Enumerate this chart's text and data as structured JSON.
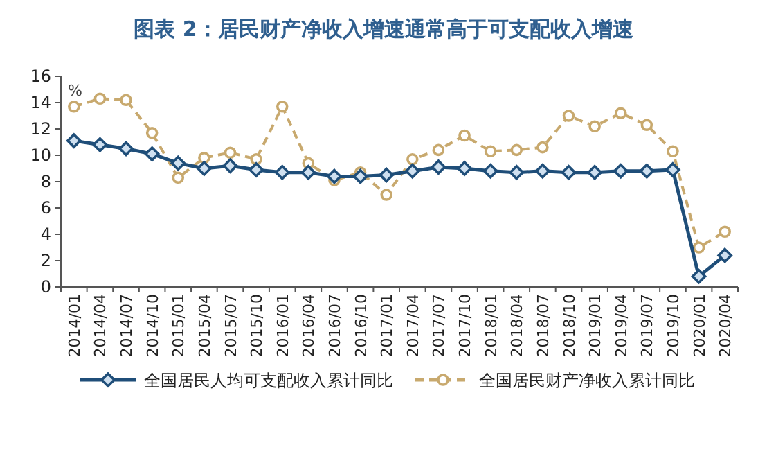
{
  "chart_data": {
    "type": "line",
    "title": "图表 2：居民财产净收入增速通常高于可支配收入增速",
    "categories": [
      "2014/01",
      "2014/04",
      "2014/07",
      "2014/10",
      "2015/01",
      "2015/04",
      "2015/07",
      "2015/10",
      "2016/01",
      "2016/04",
      "2016/07",
      "2016/10",
      "2017/01",
      "2017/04",
      "2017/07",
      "2017/10",
      "2018/01",
      "2018/04",
      "2018/07",
      "2018/10",
      "2019/01",
      "2019/04",
      "2019/07",
      "2019/10",
      "2020/01",
      "2020/04"
    ],
    "series": [
      {
        "name": "全国居民人均可支配收入累计同比",
        "color": "#1f4e79",
        "marker": "diamond",
        "line_style": "solid",
        "values": [
          11.1,
          10.8,
          10.5,
          10.1,
          9.4,
          9.0,
          9.2,
          8.9,
          8.7,
          8.7,
          8.4,
          8.4,
          8.5,
          8.8,
          9.1,
          9.0,
          8.8,
          8.7,
          8.8,
          8.7,
          8.7,
          8.8,
          8.8,
          8.9,
          0.8,
          2.4
        ]
      },
      {
        "name": "全国居民财产净收入累计同比",
        "color": "#c8a96e",
        "marker": "circle",
        "line_style": "dashed",
        "values": [
          13.7,
          14.3,
          14.2,
          11.7,
          8.3,
          9.8,
          10.2,
          9.7,
          13.7,
          9.4,
          8.1,
          8.7,
          7.0,
          9.7,
          10.4,
          11.5,
          10.3,
          10.4,
          10.6,
          13.0,
          12.2,
          13.2,
          12.3,
          10.3,
          3.0,
          4.2
        ]
      }
    ],
    "ylim": [
      0,
      16
    ],
    "yticks": [
      0,
      2,
      4,
      6,
      8,
      10,
      12,
      14,
      16
    ],
    "annotations": [
      "%"
    ],
    "legend": "bottom",
    "grid": false
  }
}
